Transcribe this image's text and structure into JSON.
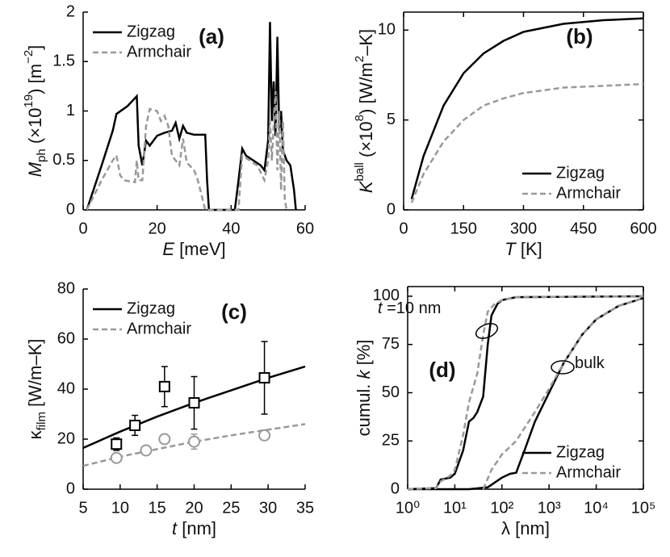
{
  "chart_data": [
    {
      "type": "line",
      "label": "(a)",
      "frame": false,
      "legend": "top-left",
      "xlabel": [
        {
          "text": "E",
          "style": "italic"
        },
        {
          "text": " [meV]"
        }
      ],
      "ylabel": [
        {
          "text": "M",
          "style": "italic"
        },
        {
          "text": "ph",
          "style": "sub"
        },
        {
          "text": " (×10"
        },
        {
          "text": "19",
          "style": "sup"
        },
        {
          "text": ") [m"
        },
        {
          "text": "−2",
          "style": "sup"
        },
        {
          "text": "]"
        }
      ],
      "xlim": [
        0,
        60
      ],
      "xticks": [
        0,
        20,
        40,
        60
      ],
      "ylim": [
        0,
        2
      ],
      "yticks": [
        0,
        0.5,
        1,
        1.5,
        2
      ],
      "series": [
        {
          "name": "Zigzag",
          "color": "#000000",
          "dash": false,
          "x": [
            1,
            5,
            8,
            9,
            12,
            14.5,
            15,
            16,
            17,
            18,
            20,
            22,
            24,
            25,
            26,
            27,
            28,
            30,
            33,
            33.5,
            34,
            41,
            42,
            43,
            44,
            46,
            48,
            49,
            50,
            50.5,
            51,
            51.5,
            52,
            52.5,
            53,
            53.5,
            54,
            55,
            56,
            57,
            57.5
          ],
          "values": [
            0,
            0.45,
            0.8,
            0.97,
            1.05,
            1.15,
            0.65,
            0.45,
            0.7,
            0.65,
            0.75,
            0.78,
            0.8,
            0.88,
            0.72,
            0.85,
            0.78,
            0.76,
            0.76,
            0.3,
            0,
            0,
            0.3,
            0.62,
            0.55,
            0.5,
            0.45,
            0.4,
            0.7,
            1.9,
            0.9,
            1.3,
            0.75,
            1.75,
            0.8,
            1.0,
            0.6,
            0.5,
            0.45,
            0.2,
            0
          ]
        },
        {
          "name": "Armchair",
          "color": "#999999",
          "dash": true,
          "x": [
            1,
            5,
            8,
            9,
            10,
            11,
            14,
            14.5,
            15,
            16,
            17,
            18,
            20,
            21,
            22,
            23,
            24,
            25,
            26,
            27,
            28,
            30,
            31,
            32,
            33,
            42,
            42.5,
            43,
            45,
            47,
            48,
            49,
            50,
            50.5,
            51,
            52,
            52.5,
            53,
            53.5,
            54,
            54.5,
            55
          ],
          "values": [
            0,
            0.3,
            0.5,
            0.55,
            0.35,
            0.3,
            0.28,
            0.5,
            0.3,
            0.3,
            0.85,
            1.02,
            1.0,
            0.9,
            0.95,
            0.85,
            0.55,
            0.5,
            0.45,
            0.72,
            0.48,
            0.4,
            0.3,
            0.15,
            0,
            0,
            0.3,
            0.55,
            0.5,
            0.45,
            0.38,
            0.3,
            0.5,
            0.9,
            0.5,
            1.2,
            0.4,
            1.0,
            0.2,
            0.9,
            0.1,
            0
          ]
        }
      ]
    },
    {
      "type": "line",
      "label": "(b)",
      "frame": true,
      "legend": "bottom-right",
      "xlabel": [
        {
          "text": "T",
          "style": "italic"
        },
        {
          "text": " [K]"
        }
      ],
      "ylabel": [
        {
          "text": "K",
          "style": "italic"
        },
        {
          "text": "ball",
          "style": "sup"
        },
        {
          "text": " (×10"
        },
        {
          "text": "8",
          "style": "sup"
        },
        {
          "text": ") [W/m"
        },
        {
          "text": "2",
          "style": "sup"
        },
        {
          "text": "–K]"
        }
      ],
      "xlim": [
        0,
        600
      ],
      "xticks": [
        0,
        150,
        300,
        450,
        600
      ],
      "ylim": [
        0,
        11
      ],
      "yticks": [
        0,
        5,
        10
      ],
      "series": [
        {
          "name": "Zigzag",
          "color": "#000000",
          "dash": false,
          "x": [
            20,
            50,
            100,
            150,
            200,
            250,
            300,
            400,
            500,
            600
          ],
          "values": [
            0.6,
            3,
            5.8,
            7.6,
            8.7,
            9.4,
            9.9,
            10.35,
            10.55,
            10.65
          ]
        },
        {
          "name": "Armchair",
          "color": "#999999",
          "dash": true,
          "x": [
            20,
            50,
            100,
            150,
            200,
            250,
            300,
            400,
            500,
            600
          ],
          "values": [
            0.4,
            2,
            3.8,
            5,
            5.8,
            6.2,
            6.5,
            6.8,
            6.9,
            7.0
          ]
        }
      ]
    },
    {
      "type": "line",
      "label": "(c)",
      "frame": false,
      "legend": "top-left",
      "xlabel": [
        {
          "text": "t",
          "style": "italic"
        },
        {
          "text": " [nm]"
        }
      ],
      "ylabel": [
        {
          "text": "κ"
        },
        {
          "text": "film",
          "style": "sub"
        },
        {
          "text": " [W/m–K]"
        }
      ],
      "xlim": [
        5,
        35
      ],
      "xticks": [
        5,
        10,
        15,
        20,
        25,
        30,
        35
      ],
      "ylim": [
        0,
        80
      ],
      "yticks": [
        0,
        20,
        40,
        60,
        80
      ],
      "series": [
        {
          "name": "Zigzag",
          "color": "#000000",
          "dash": false,
          "x": [
            5,
            10,
            15,
            20,
            25,
            30,
            35
          ],
          "values": [
            16.5,
            23,
            29,
            34.5,
            39.5,
            44.5,
            49
          ],
          "points": {
            "marker": "square",
            "x": [
              9.5,
              12,
              16,
              20,
              29.5
            ],
            "values": [
              18,
              25.5,
              41,
              34.5,
              44.5
            ],
            "errors": [
              2.5,
              4,
              8,
              10.5,
              14.5
            ]
          }
        },
        {
          "name": "Armchair",
          "color": "#999999",
          "dash": true,
          "x": [
            5,
            10,
            15,
            20,
            25,
            30,
            35
          ],
          "values": [
            9.3,
            13,
            16,
            19,
            21.5,
            23.8,
            26
          ],
          "points": {
            "marker": "circle",
            "x": [
              9.5,
              13.5,
              16,
              20,
              29.5
            ],
            "values": [
              12.5,
              15.5,
              20,
              19,
              21.5
            ],
            "errors": [
              null,
              null,
              null,
              3,
              null
            ]
          }
        }
      ]
    },
    {
      "type": "line",
      "label": "(d)",
      "frame": true,
      "legend": "bottom-right",
      "xscale": "log",
      "xlabel": [
        {
          "text": "λ [nm]"
        }
      ],
      "ylabel": [
        {
          "text": "cumul. "
        },
        {
          "text": "k",
          "style": "italic"
        },
        {
          "text": " [%]"
        }
      ],
      "xlim": [
        1,
        100000
      ],
      "xticks": [
        {
          "value": 1,
          "label": "10⁰"
        },
        {
          "value": 10,
          "label": "10¹"
        },
        {
          "value": 100,
          "label": "10²"
        },
        {
          "value": 1000,
          "label": "10³"
        },
        {
          "value": 10000,
          "label": "10⁴"
        },
        {
          "value": 100000,
          "label": "10⁵"
        }
      ],
      "ylim": [
        0,
        105
      ],
      "yticks": [
        0,
        25,
        50,
        75,
        100
      ],
      "annotations": [
        {
          "text": [
            {
              "text": "t",
              "style": "italic"
            },
            {
              "text": " =10 nm"
            }
          ]
        },
        {
          "text": [
            {
              "text": "bulk"
            }
          ]
        }
      ],
      "series": [
        {
          "name": "Zigzag",
          "color": "#000000",
          "dash": false,
          "lines": [
            {
              "x": [
                1,
                4,
                5,
                8,
                10,
                15,
                20,
                25,
                30,
                40,
                50,
                60,
                80,
                100,
                200,
                100000
              ],
              "values": [
                0,
                0.5,
                5,
                6,
                8,
                20,
                35,
                37,
                40,
                48,
                75,
                90,
                96,
                98,
                99.5,
                100
              ]
            },
            {
              "x": [
                1,
                20,
                50,
                100,
                150,
                200,
                300,
                500,
                1000,
                2000,
                5000,
                10000,
                30000,
                100000
              ],
              "values": [
                0,
                0,
                1,
                6,
                8,
                8.5,
                20,
                35,
                50,
                65,
                80,
                88,
                95,
                99
              ]
            }
          ]
        },
        {
          "name": "Armchair",
          "color": "#999999",
          "dash": true,
          "lines": [
            {
              "x": [
                1,
                4,
                5,
                8,
                10,
                15,
                20,
                30,
                40,
                50,
                70,
                100,
                200,
                100000
              ],
              "values": [
                0,
                0.5,
                4,
                7,
                10,
                28,
                45,
                60,
                80,
                92,
                96,
                98,
                99.5,
                100
              ]
            },
            {
              "x": [
                40,
                60,
                100,
                200,
                500,
                1000,
                2000,
                5000,
                10000,
                30000,
                100000
              ],
              "values": [
                0,
                10,
                18,
                25,
                40,
                52,
                65,
                80,
                88,
                95,
                99
              ]
            }
          ]
        }
      ]
    }
  ]
}
